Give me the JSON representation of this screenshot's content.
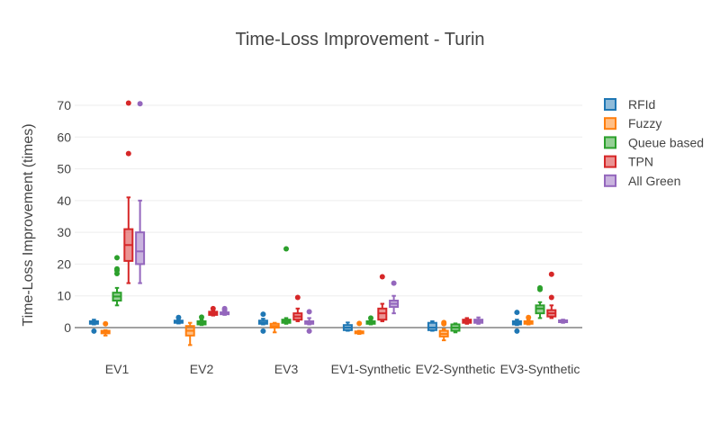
{
  "chart_data": {
    "type": "box",
    "title": "Time-Loss Improvement - Turin",
    "ylabel": "Time-Loss Improvement (times)",
    "xlabel": "",
    "ylim": [
      -8,
      75
    ],
    "yticks": [
      0,
      10,
      20,
      30,
      40,
      50,
      60,
      70
    ],
    "grid": true,
    "legend": "right",
    "categories": [
      "EV1",
      "EV2",
      "EV3",
      "EV1-Synthetic",
      "EV2-Synthetic",
      "EV3-Synthetic"
    ],
    "series": [
      {
        "name": "RFId",
        "color": "#1f77b4",
        "boxes": [
          {
            "min": 1,
            "q1": 1.2,
            "median": 1.6,
            "q3": 2,
            "max": 2.5,
            "outliers": [
              -1.1
            ]
          },
          {
            "min": 1.3,
            "q1": 1.5,
            "median": 1.8,
            "q3": 2.2,
            "max": 2.6,
            "outliers": [
              3.2
            ]
          },
          {
            "min": 1,
            "q1": 1.2,
            "median": 1.6,
            "q3": 2.2,
            "max": 2.8,
            "outliers": [
              4.2,
              -1.1
            ]
          },
          {
            "min": -1,
            "q1": -0.8,
            "median": 0,
            "q3": 0.8,
            "max": 1.6,
            "outliers": []
          },
          {
            "min": -1,
            "q1": -0.8,
            "median": 0,
            "q3": 1.5,
            "max": 2,
            "outliers": []
          },
          {
            "min": 0.8,
            "q1": 1,
            "median": 1.5,
            "q3": 2,
            "max": 2.5,
            "outliers": [
              4.8,
              -1.1
            ]
          }
        ]
      },
      {
        "name": "Fuzzy",
        "color": "#ff7f0e",
        "boxes": [
          {
            "min": -2.5,
            "q1": -1.8,
            "median": -1.5,
            "q3": -1,
            "max": -0.8,
            "outliers": [
              1.2
            ]
          },
          {
            "min": -5.5,
            "q1": -2.5,
            "median": -1,
            "q3": 0.5,
            "max": 1.5,
            "outliers": []
          },
          {
            "min": -1.5,
            "q1": 0,
            "median": 0.5,
            "q3": 1.2,
            "max": 1.5,
            "outliers": []
          },
          {
            "min": -2,
            "q1": -1.8,
            "median": -1.5,
            "q3": -1.2,
            "max": -1,
            "outliers": [
              1.3
            ]
          },
          {
            "min": -4,
            "q1": -2.8,
            "median": -2,
            "q3": -1,
            "max": -0.5,
            "outliers": [
              1.2,
              1.6
            ]
          },
          {
            "min": 1,
            "q1": 1.2,
            "median": 1.6,
            "q3": 2,
            "max": 2.5,
            "outliers": [
              3.2
            ]
          }
        ]
      },
      {
        "name": "Queue based",
        "color": "#2ca02c",
        "boxes": [
          {
            "min": 7,
            "q1": 8.5,
            "median": 9.8,
            "q3": 11,
            "max": 12.5,
            "outliers": [
              17,
              18,
              18.5,
              22
            ]
          },
          {
            "min": 0.8,
            "q1": 1,
            "median": 1.5,
            "q3": 2,
            "max": 2.5,
            "outliers": [
              3.3
            ]
          },
          {
            "min": 1.2,
            "q1": 1.5,
            "median": 2,
            "q3": 2.5,
            "max": 3,
            "outliers": [
              24.8
            ]
          },
          {
            "min": 1,
            "q1": 1.2,
            "median": 1.5,
            "q3": 2,
            "max": 2.5,
            "outliers": [
              3
            ]
          },
          {
            "min": -1.5,
            "q1": -1,
            "median": 0,
            "q3": 1,
            "max": 1.3,
            "outliers": []
          },
          {
            "min": 3,
            "q1": 4.5,
            "median": 6,
            "q3": 7,
            "max": 8,
            "outliers": [
              12,
              12.5
            ]
          }
        ]
      },
      {
        "name": "TPN",
        "color": "#d62728",
        "boxes": [
          {
            "min": 14,
            "q1": 21,
            "median": 26,
            "q3": 31,
            "max": 41,
            "outliers": [
              54.8,
              70.7
            ]
          },
          {
            "min": 3.8,
            "q1": 4,
            "median": 4.5,
            "q3": 5,
            "max": 5.5,
            "outliers": [
              6
            ]
          },
          {
            "min": 2,
            "q1": 2.5,
            "median": 3.5,
            "q3": 4.5,
            "max": 6,
            "outliers": [
              9.5
            ]
          },
          {
            "min": 2,
            "q1": 2.5,
            "median": 4.5,
            "q3": 6,
            "max": 7.5,
            "outliers": [
              16
            ]
          },
          {
            "min": 1.2,
            "q1": 1.5,
            "median": 2,
            "q3": 2.5,
            "max": 3,
            "outliers": []
          },
          {
            "min": 3,
            "q1": 3.5,
            "median": 4.5,
            "q3": 5.5,
            "max": 7,
            "outliers": [
              9.5,
              16.8
            ]
          }
        ]
      },
      {
        "name": "All Green",
        "color": "#9467bd",
        "boxes": [
          {
            "min": 14,
            "q1": 20,
            "median": 24,
            "q3": 30,
            "max": 40,
            "outliers": [
              70.5
            ]
          },
          {
            "min": 4,
            "q1": 4.2,
            "median": 4.5,
            "q3": 4.8,
            "max": 5,
            "outliers": [
              5.5,
              6
            ]
          },
          {
            "min": 1,
            "q1": 1.2,
            "median": 1.5,
            "q3": 2,
            "max": 3,
            "outliers": [
              5,
              -1.1
            ]
          },
          {
            "min": 4.5,
            "q1": 6.5,
            "median": 7.5,
            "q3": 8.5,
            "max": 10,
            "outliers": [
              14
            ]
          },
          {
            "min": 1.2,
            "q1": 1.5,
            "median": 2,
            "q3": 2.5,
            "max": 3.2,
            "outliers": []
          },
          {
            "min": 1.5,
            "q1": 1.7,
            "median": 2,
            "q3": 2.3,
            "max": 2.5,
            "outliers": []
          }
        ]
      }
    ]
  }
}
